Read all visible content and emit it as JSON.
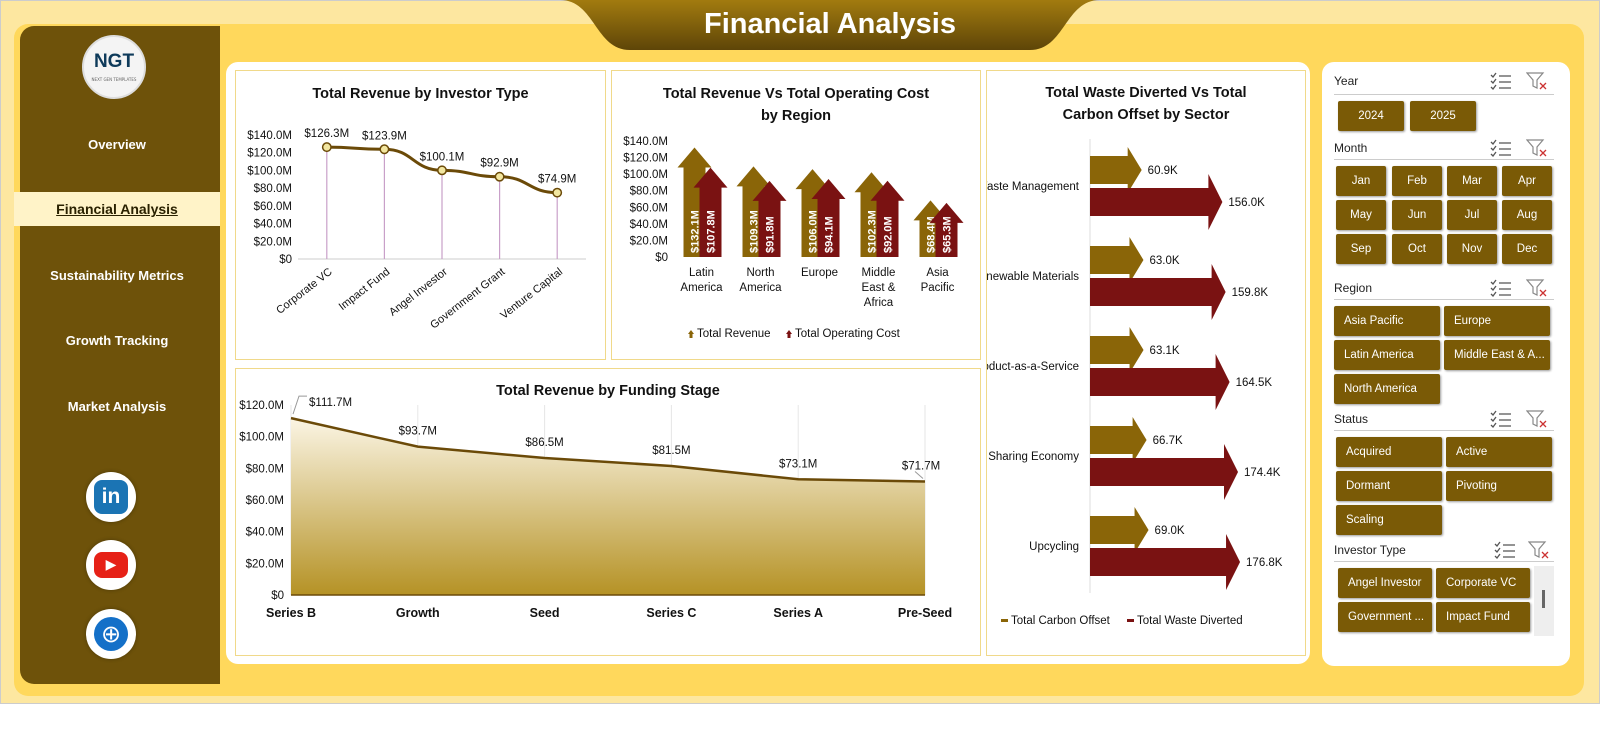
{
  "header": {
    "title": "Financial Analysis"
  },
  "logo": {
    "text": "NGT",
    "subtext": "NEXT GEN TEMPLATES"
  },
  "sidebar": {
    "items": [
      {
        "label": "Overview",
        "active": false
      },
      {
        "label": "Financial Analysis",
        "active": true
      },
      {
        "label": "Sustainability Metrics",
        "active": false
      },
      {
        "label": "Growth Tracking",
        "active": false
      },
      {
        "label": "Market Analysis",
        "active": false
      }
    ],
    "social": [
      {
        "name": "linkedin-icon",
        "glyph": "in",
        "color": "#1b74b4"
      },
      {
        "name": "youtube-icon",
        "glyph": "▶",
        "color": "#e62117"
      },
      {
        "name": "globe-icon",
        "glyph": "⊕",
        "color": "#1470c8"
      }
    ]
  },
  "charts": {
    "investor": {
      "type": "line",
      "title": "Total Revenue  by Investor Type",
      "categories": [
        "Corporate VC",
        "Impact Fund",
        "Angel Investor",
        "Government Grant",
        "Venture Capital"
      ],
      "values": [
        126.3,
        123.9,
        100.1,
        92.9,
        74.9
      ],
      "labels": [
        "$126.3M",
        "$123.9M",
        "$100.1M",
        "$92.9M",
        "$74.9M"
      ],
      "yticks": [
        "$140.0M",
        "$120.0M",
        "$100.0M",
        "$80.0M",
        "$60.0M",
        "$40.0M",
        "$20.0M",
        "$0"
      ],
      "ylim": [
        0,
        140
      ]
    },
    "region": {
      "type": "bar",
      "title_line1": "Total Revenue  Vs Total Operating Cost",
      "title_line2": "by Region",
      "categories": [
        [
          "Latin",
          "America"
        ],
        [
          "North",
          "America"
        ],
        [
          "Europe"
        ],
        [
          "Middle",
          "East &",
          "Africa"
        ],
        [
          "Asia",
          "Pacific"
        ]
      ],
      "series": [
        {
          "name": "Total Revenue",
          "values": [
            132.1,
            109.3,
            106.0,
            102.3,
            68.4
          ],
          "labels": [
            "$132.1M",
            "$109.3M",
            "$106.0M",
            "$102.3M",
            "$68.4M"
          ],
          "color": "#8a6508"
        },
        {
          "name": "Total Operating Cost",
          "values": [
            107.8,
            91.8,
            94.1,
            92.0,
            65.3
          ],
          "labels": [
            "$107.8M",
            "$91.8M",
            "$94.1M",
            "$92.0M",
            "$65.3M"
          ],
          "color": "#7a1212"
        }
      ],
      "yticks": [
        "$140.0M",
        "$120.0M",
        "$100.0M",
        "$80.0M",
        "$60.0M",
        "$40.0M",
        "$20.0M",
        "$0"
      ],
      "ylim": [
        0,
        140
      ]
    },
    "sector": {
      "type": "bar",
      "title_line1": "Total Waste Diverted Vs Total",
      "title_line2": "Carbon Offset by Sector",
      "categories": [
        "Waste Management",
        "Renewable Materials",
        "Product-as-a-Service",
        "Sharing Economy",
        "Upcycling"
      ],
      "series": [
        {
          "name": "Total Carbon Offset",
          "values": [
            60.9,
            63.0,
            63.1,
            66.7,
            69.0
          ],
          "labels": [
            "60.9K",
            "63.0K",
            "63.1K",
            "66.7K",
            "69.0K"
          ],
          "color": "#8a6508"
        },
        {
          "name": "Total Waste Diverted",
          "values": [
            156.0,
            159.8,
            164.5,
            174.4,
            176.8
          ],
          "labels": [
            "156.0K",
            "159.8K",
            "164.5K",
            "174.4K",
            "176.8K"
          ],
          "color": "#7a1212"
        }
      ]
    },
    "stage": {
      "type": "area",
      "title": "Total Revenue  by Funding Stage",
      "categories": [
        "Series B",
        "Growth",
        "Seed",
        "Series C",
        "Series A",
        "Pre-Seed"
      ],
      "values": [
        111.7,
        93.7,
        86.5,
        81.5,
        73.1,
        71.7
      ],
      "labels": [
        "$111.7M",
        "$93.7M",
        "$86.5M",
        "$81.5M",
        "$73.1M",
        "$71.7M"
      ],
      "yticks": [
        "$120.0M",
        "$100.0M",
        "$80.0M",
        "$60.0M",
        "$40.0M",
        "$20.0M",
        "$0"
      ],
      "ylim": [
        0,
        120
      ]
    }
  },
  "filters": {
    "year": {
      "label": "Year",
      "options": [
        "2024",
        "2025"
      ]
    },
    "month": {
      "label": "Month",
      "options": [
        "Jan",
        "Feb",
        "Mar",
        "Apr",
        "May",
        "Jun",
        "Jul",
        "Aug",
        "Sep",
        "Oct",
        "Nov",
        "Dec"
      ]
    },
    "region": {
      "label": "Region",
      "options": [
        "Asia Pacific",
        "Europe",
        "Latin America",
        "Middle East & A...",
        "North America"
      ]
    },
    "status": {
      "label": "Status",
      "options": [
        "Acquired",
        "Active",
        "Dormant",
        "Pivoting",
        "Scaling"
      ]
    },
    "investor": {
      "label": "Investor Type",
      "options": [
        "Angel Investor",
        "Corporate VC",
        "Government ...",
        "Impact Fund"
      ]
    }
  }
}
